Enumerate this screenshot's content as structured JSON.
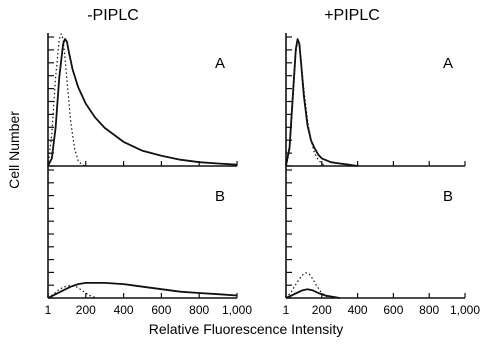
{
  "chart_data": {
    "type": "line",
    "xlabel": "Relative Fluorescence Intensity",
    "ylabel": "Cell Number",
    "xlim": [
      0,
      1000
    ],
    "x_tick_labels": [
      "1",
      "200",
      "400",
      "600",
      "800",
      "1,000"
    ],
    "x_ticks": [
      0,
      200,
      400,
      600,
      800,
      1000
    ],
    "grid": false,
    "columns": [
      "-PIPLC",
      "+PIPLC"
    ],
    "rows": [
      "A",
      "B"
    ],
    "panels": [
      {
        "column": "-PIPLC",
        "row": "A",
        "series": [
          {
            "style": "solid",
            "x": [
              0,
              20,
              40,
              60,
              80,
              90,
              100,
              110,
              130,
              160,
              200,
              250,
              300,
              400,
              500,
              600,
              700,
              800,
              900,
              1000
            ],
            "y": [
              0,
              6,
              30,
              70,
              96,
              100,
              98,
              90,
              76,
              62,
              49,
              38,
              30,
              19,
              12,
              8,
              5,
              3,
              2,
              1
            ]
          },
          {
            "style": "dotted",
            "x": [
              0,
              20,
              40,
              60,
              70,
              80,
              90,
              100,
              120,
              140,
              160,
              180,
              200
            ],
            "y": [
              0,
              25,
              70,
              100,
              104,
              100,
              85,
              68,
              35,
              14,
              4,
              1,
              0
            ]
          }
        ]
      },
      {
        "column": "-PIPLC",
        "row": "B",
        "series": [
          {
            "style": "solid",
            "x": [
              0,
              40,
              80,
              120,
              160,
              200,
              300,
              400,
              500,
              600,
              700,
              800,
              900,
              1000
            ],
            "y": [
              0,
              3,
              6,
              9,
              11,
              12,
              12,
              11,
              9,
              7,
              5,
              4,
              3,
              2
            ]
          },
          {
            "style": "dotted",
            "x": [
              0,
              30,
              60,
              90,
              120,
              150,
              180,
              220,
              260
            ],
            "y": [
              0,
              3,
              7,
              9,
              10,
              9,
              6,
              2,
              0
            ]
          }
        ]
      },
      {
        "column": "+PIPLC",
        "row": "A",
        "series": [
          {
            "style": "solid",
            "x": [
              0,
              20,
              40,
              55,
              65,
              75,
              85,
              100,
              120,
              140,
              160,
              180,
              200,
              250,
              300,
              350,
              400
            ],
            "y": [
              0,
              15,
              60,
              92,
              100,
              96,
              80,
              55,
              32,
              20,
              14,
              9,
              6,
              3,
              2,
              1,
              0
            ]
          },
          {
            "style": "dotted",
            "x": [
              0,
              20,
              40,
              55,
              65,
              75,
              85,
              100,
              120,
              140,
              160,
              180,
              200,
              220
            ],
            "y": [
              0,
              12,
              55,
              88,
              98,
              95,
              82,
              60,
              36,
              20,
              10,
              5,
              2,
              0
            ]
          }
        ]
      },
      {
        "column": "+PIPLC",
        "row": "B",
        "series": [
          {
            "style": "solid",
            "x": [
              0,
              30,
              60,
              90,
              120,
              150,
              180,
              220,
              260,
              300
            ],
            "y": [
              0,
              2,
              4,
              6,
              7,
              6,
              4,
              2,
              1,
              0
            ]
          },
          {
            "style": "dotted",
            "x": [
              0,
              30,
              60,
              90,
              110,
              130,
              150,
              170,
              200,
              240
            ],
            "y": [
              0,
              5,
              12,
              18,
              20,
              19,
              15,
              10,
              4,
              0
            ]
          }
        ]
      }
    ]
  }
}
